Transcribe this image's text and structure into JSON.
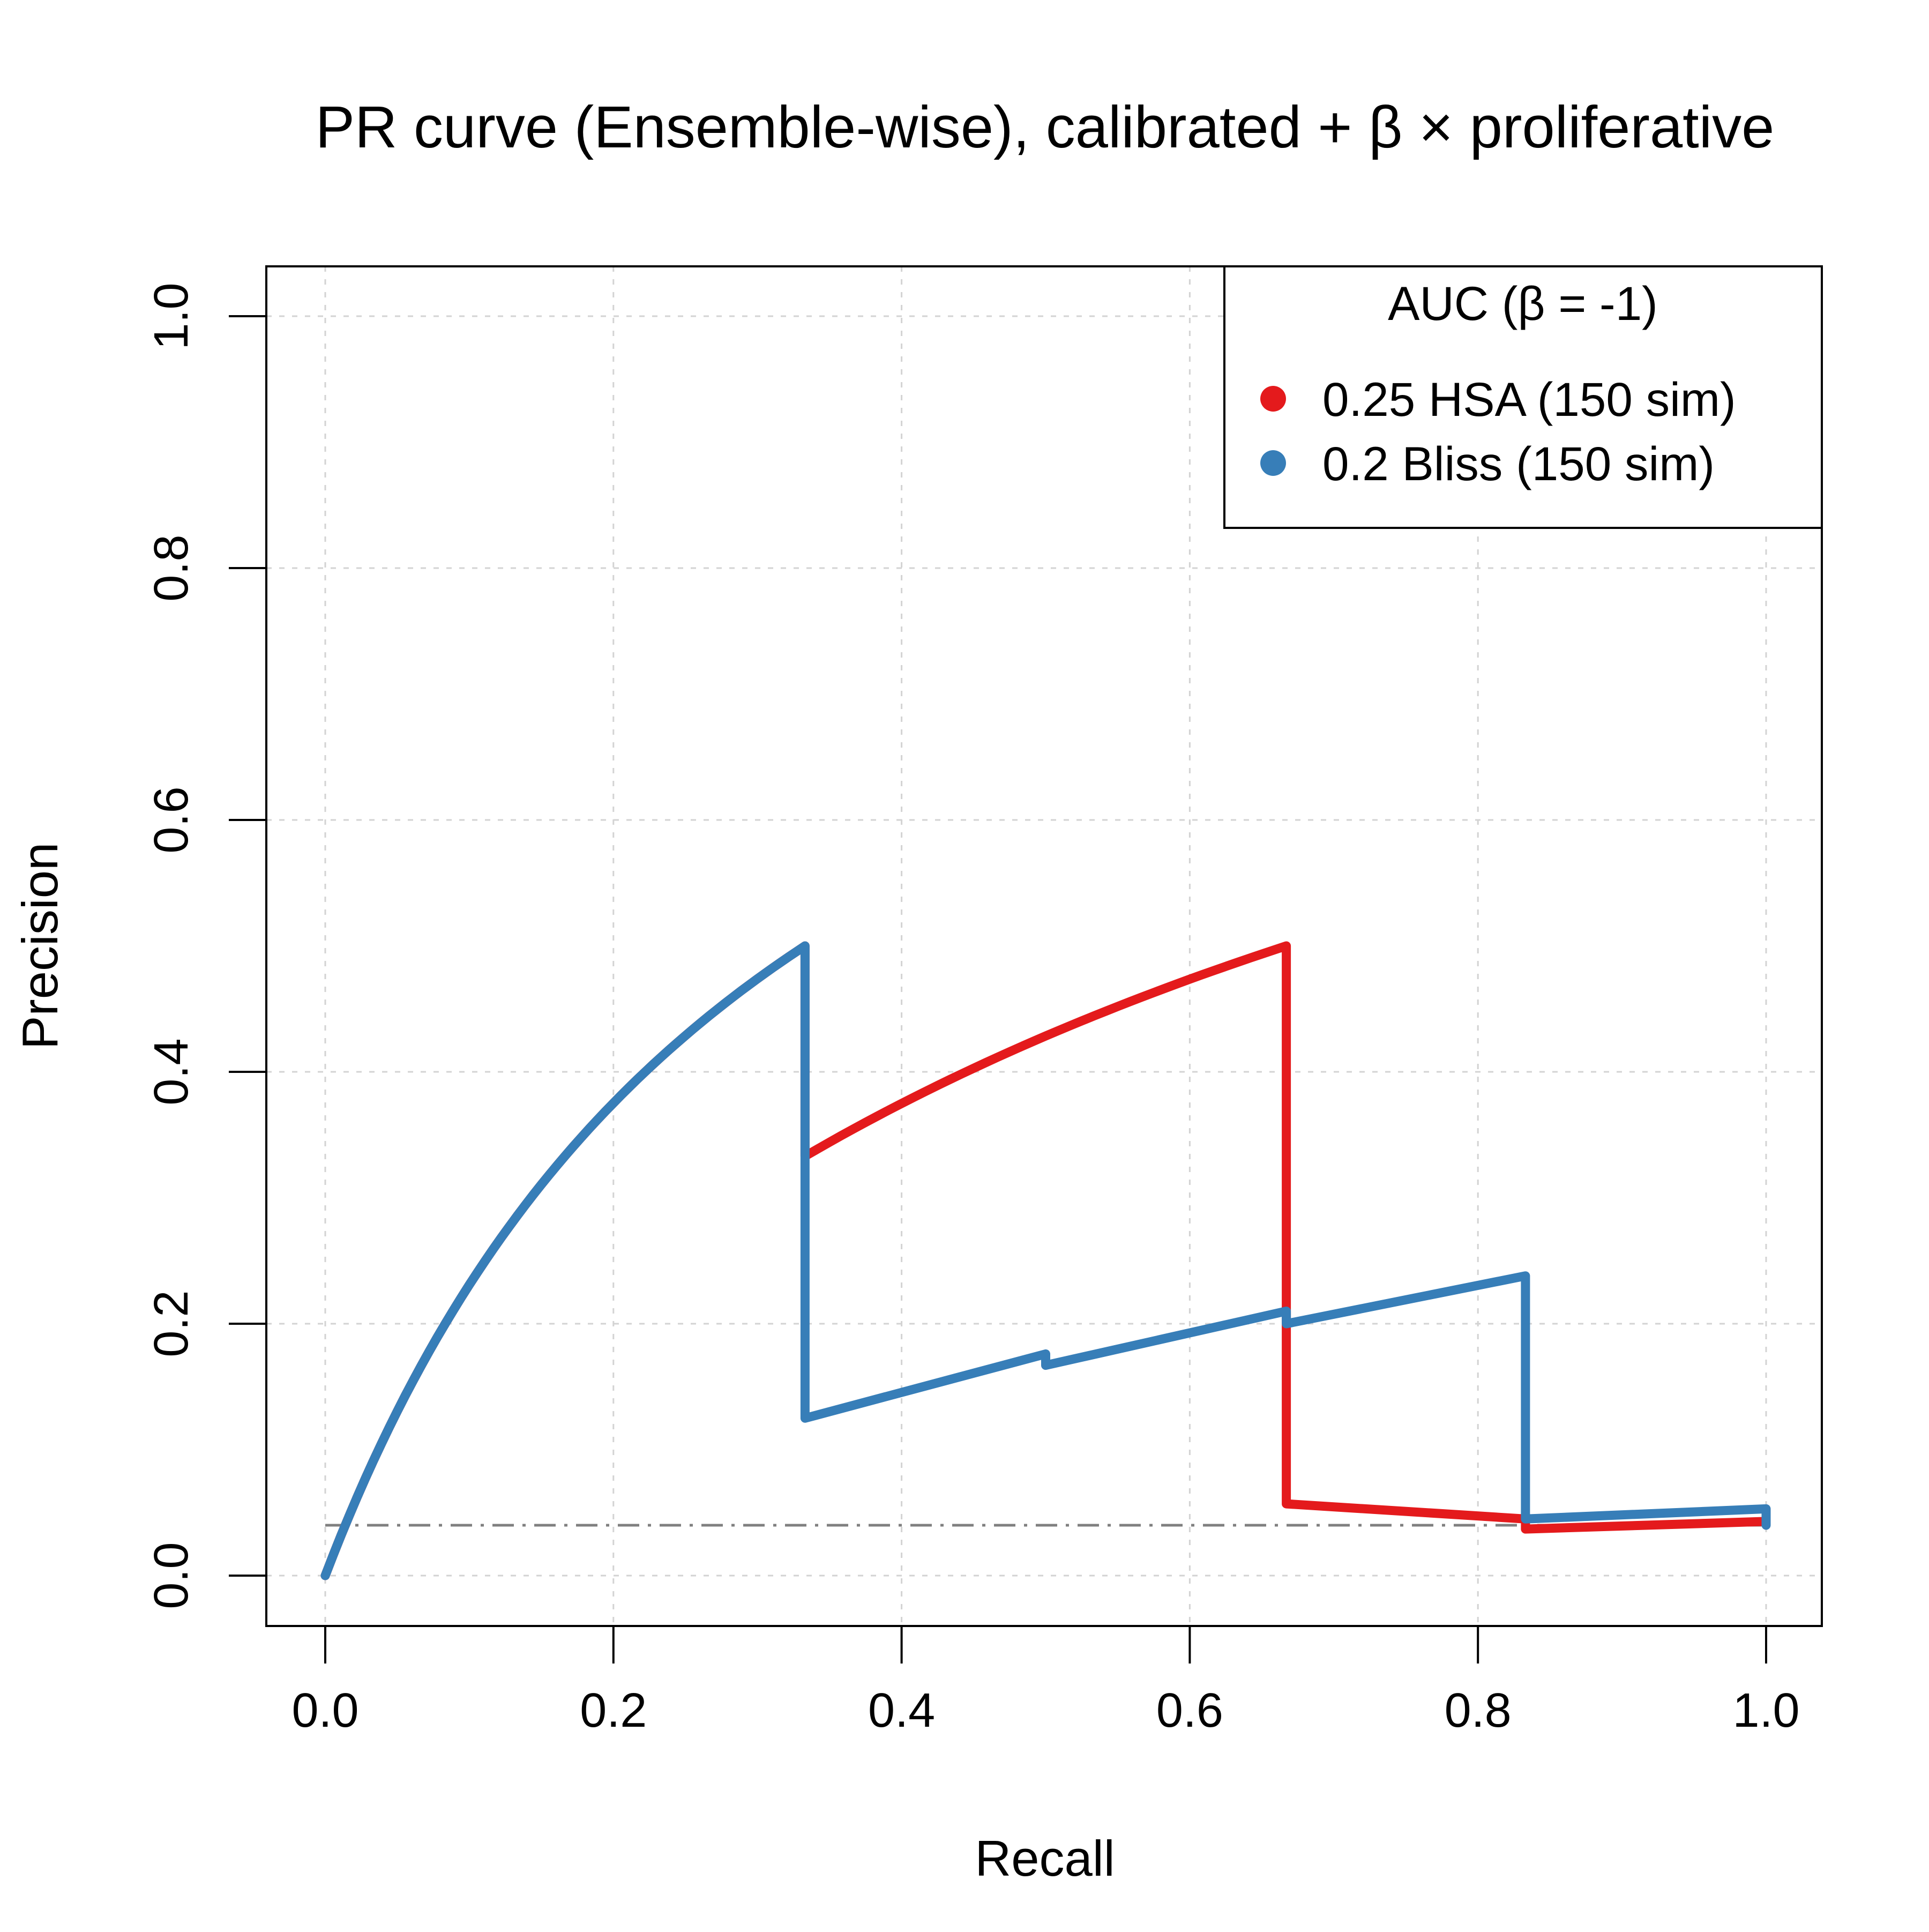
{
  "chart_data": {
    "type": "line",
    "title": "PR curve (Ensemble-wise), calibrated + β × proliferative",
    "xlabel": "Recall",
    "ylabel": "Precision",
    "xlim": [
      0.0,
      1.0
    ],
    "ylim": [
      0.0,
      1.0
    ],
    "x_ticks": [
      "0.0",
      "0.2",
      "0.4",
      "0.6",
      "0.8",
      "1.0"
    ],
    "y_ticks": [
      "0.0",
      "0.2",
      "0.4",
      "0.6",
      "0.8",
      "1.0"
    ],
    "grid": true,
    "legend": {
      "title": "AUC (β = -1)",
      "placement": "top-right"
    },
    "baseline": {
      "y": 0.04,
      "style": "dash-dot",
      "color": "#808080"
    },
    "series": [
      {
        "name": "0.25 HSA (150 sim)",
        "color": "#E41A1C",
        "x": [
          0.0,
          0.333,
          0.333,
          0.667,
          0.667,
          0.833,
          0.833,
          1.0
        ],
        "y": [
          0.0,
          0.5,
          0.333,
          0.5,
          0.057,
          0.045,
          0.037,
          0.043
        ],
        "segments": [
          "curve",
          "vertical",
          "curve",
          "vertical",
          "line",
          "vertical",
          "line"
        ]
      },
      {
        "name": "0.2 Bliss (150 sim)",
        "color": "#377EB8",
        "x": [
          0.0,
          0.333,
          0.333,
          0.5,
          0.5,
          0.667,
          0.667,
          0.833,
          0.833,
          1.0,
          1.0
        ],
        "y": [
          0.0,
          0.5,
          0.125,
          0.176,
          0.167,
          0.21,
          0.2,
          0.238,
          0.045,
          0.053,
          0.04
        ],
        "segments": [
          "curve",
          "vertical",
          "line",
          "vertical",
          "line",
          "vertical",
          "line",
          "vertical",
          "line",
          "vertical"
        ]
      }
    ]
  }
}
